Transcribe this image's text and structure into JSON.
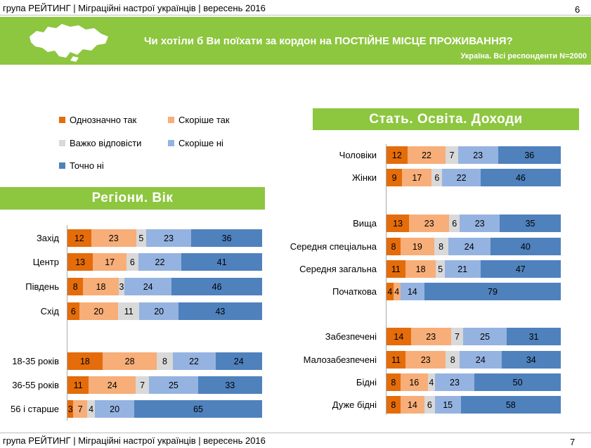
{
  "header": {
    "left_text": "група РЕЙТИНГ | Міграційні настрої українців | вересень 2016",
    "page_number": "6"
  },
  "banner": {
    "title": "Чи хотіли б Ви поїхати за кордон на ПОСТІЙНЕ МІСЦЕ ПРОЖИВАННЯ?",
    "subtitle": "Україна. Всі респонденти N=2000"
  },
  "footer": {
    "left_text": "група РЕЙТИНГ | Міграційні настрої українців | вересень 2016",
    "page_number": "7"
  },
  "legend": [
    {
      "label": "Однозначно так",
      "color": "#e46c0a"
    },
    {
      "label": "Скоріше так",
      "color": "#f7ae78"
    },
    {
      "label": "Важко відповісти",
      "color": "#d9d9d9"
    },
    {
      "label": "Скоріше ні",
      "color": "#95b3e0"
    },
    {
      "label": "Точно ні",
      "color": "#4f81bd"
    }
  ],
  "sections": {
    "left": "Регіони. Вік",
    "right": "Стать. Освіта. Доходи"
  },
  "chart_data": [
    {
      "type": "bar",
      "orientation": "horizontal",
      "stacked": true,
      "title": "Регіони. Вік",
      "series_names": [
        "Однозначно так",
        "Скоріше так",
        "Важко відповісти",
        "Скоріше ні",
        "Точно ні"
      ],
      "rows": [
        {
          "label": "Захід",
          "values": [
            12,
            23,
            5,
            23,
            36
          ]
        },
        {
          "label": "Центр",
          "values": [
            13,
            17,
            6,
            22,
            41
          ]
        },
        {
          "label": "Південь",
          "values": [
            8,
            18,
            3,
            24,
            46
          ]
        },
        {
          "label": "Схід",
          "values": [
            6,
            20,
            11,
            20,
            43
          ]
        },
        {
          "label": "18-35 років",
          "values": [
            18,
            28,
            8,
            22,
            24
          ]
        },
        {
          "label": "36-55 років",
          "values": [
            11,
            24,
            7,
            25,
            33
          ]
        },
        {
          "label": "56 і старше",
          "values": [
            3,
            7,
            4,
            20,
            65
          ]
        }
      ]
    },
    {
      "type": "bar",
      "orientation": "horizontal",
      "stacked": true,
      "title": "Стать. Освіта. Доходи",
      "series_names": [
        "Однозначно так",
        "Скоріше так",
        "Важко відповісти",
        "Скоріше ні",
        "Точно ні"
      ],
      "rows": [
        {
          "label": "Чоловіки",
          "values": [
            12,
            22,
            7,
            23,
            36
          ]
        },
        {
          "label": "Жінки",
          "values": [
            9,
            17,
            6,
            22,
            46
          ]
        },
        {
          "label": "Вища",
          "values": [
            13,
            23,
            6,
            23,
            35
          ]
        },
        {
          "label": "Середня спеціальна",
          "values": [
            8,
            19,
            8,
            24,
            40
          ]
        },
        {
          "label": "Середня загальна",
          "values": [
            11,
            18,
            5,
            21,
            47
          ]
        },
        {
          "label": "Початкова",
          "values": [
            4,
            4,
            0,
            14,
            79
          ]
        },
        {
          "label": "Забезпечені",
          "values": [
            14,
            23,
            7,
            25,
            31
          ]
        },
        {
          "label": "Малозабезпечені",
          "values": [
            11,
            23,
            8,
            24,
            34
          ]
        },
        {
          "label": "Бідні",
          "values": [
            8,
            16,
            4,
            23,
            50
          ]
        },
        {
          "label": "Дуже бідні",
          "values": [
            8,
            14,
            6,
            15,
            58
          ]
        }
      ]
    }
  ]
}
